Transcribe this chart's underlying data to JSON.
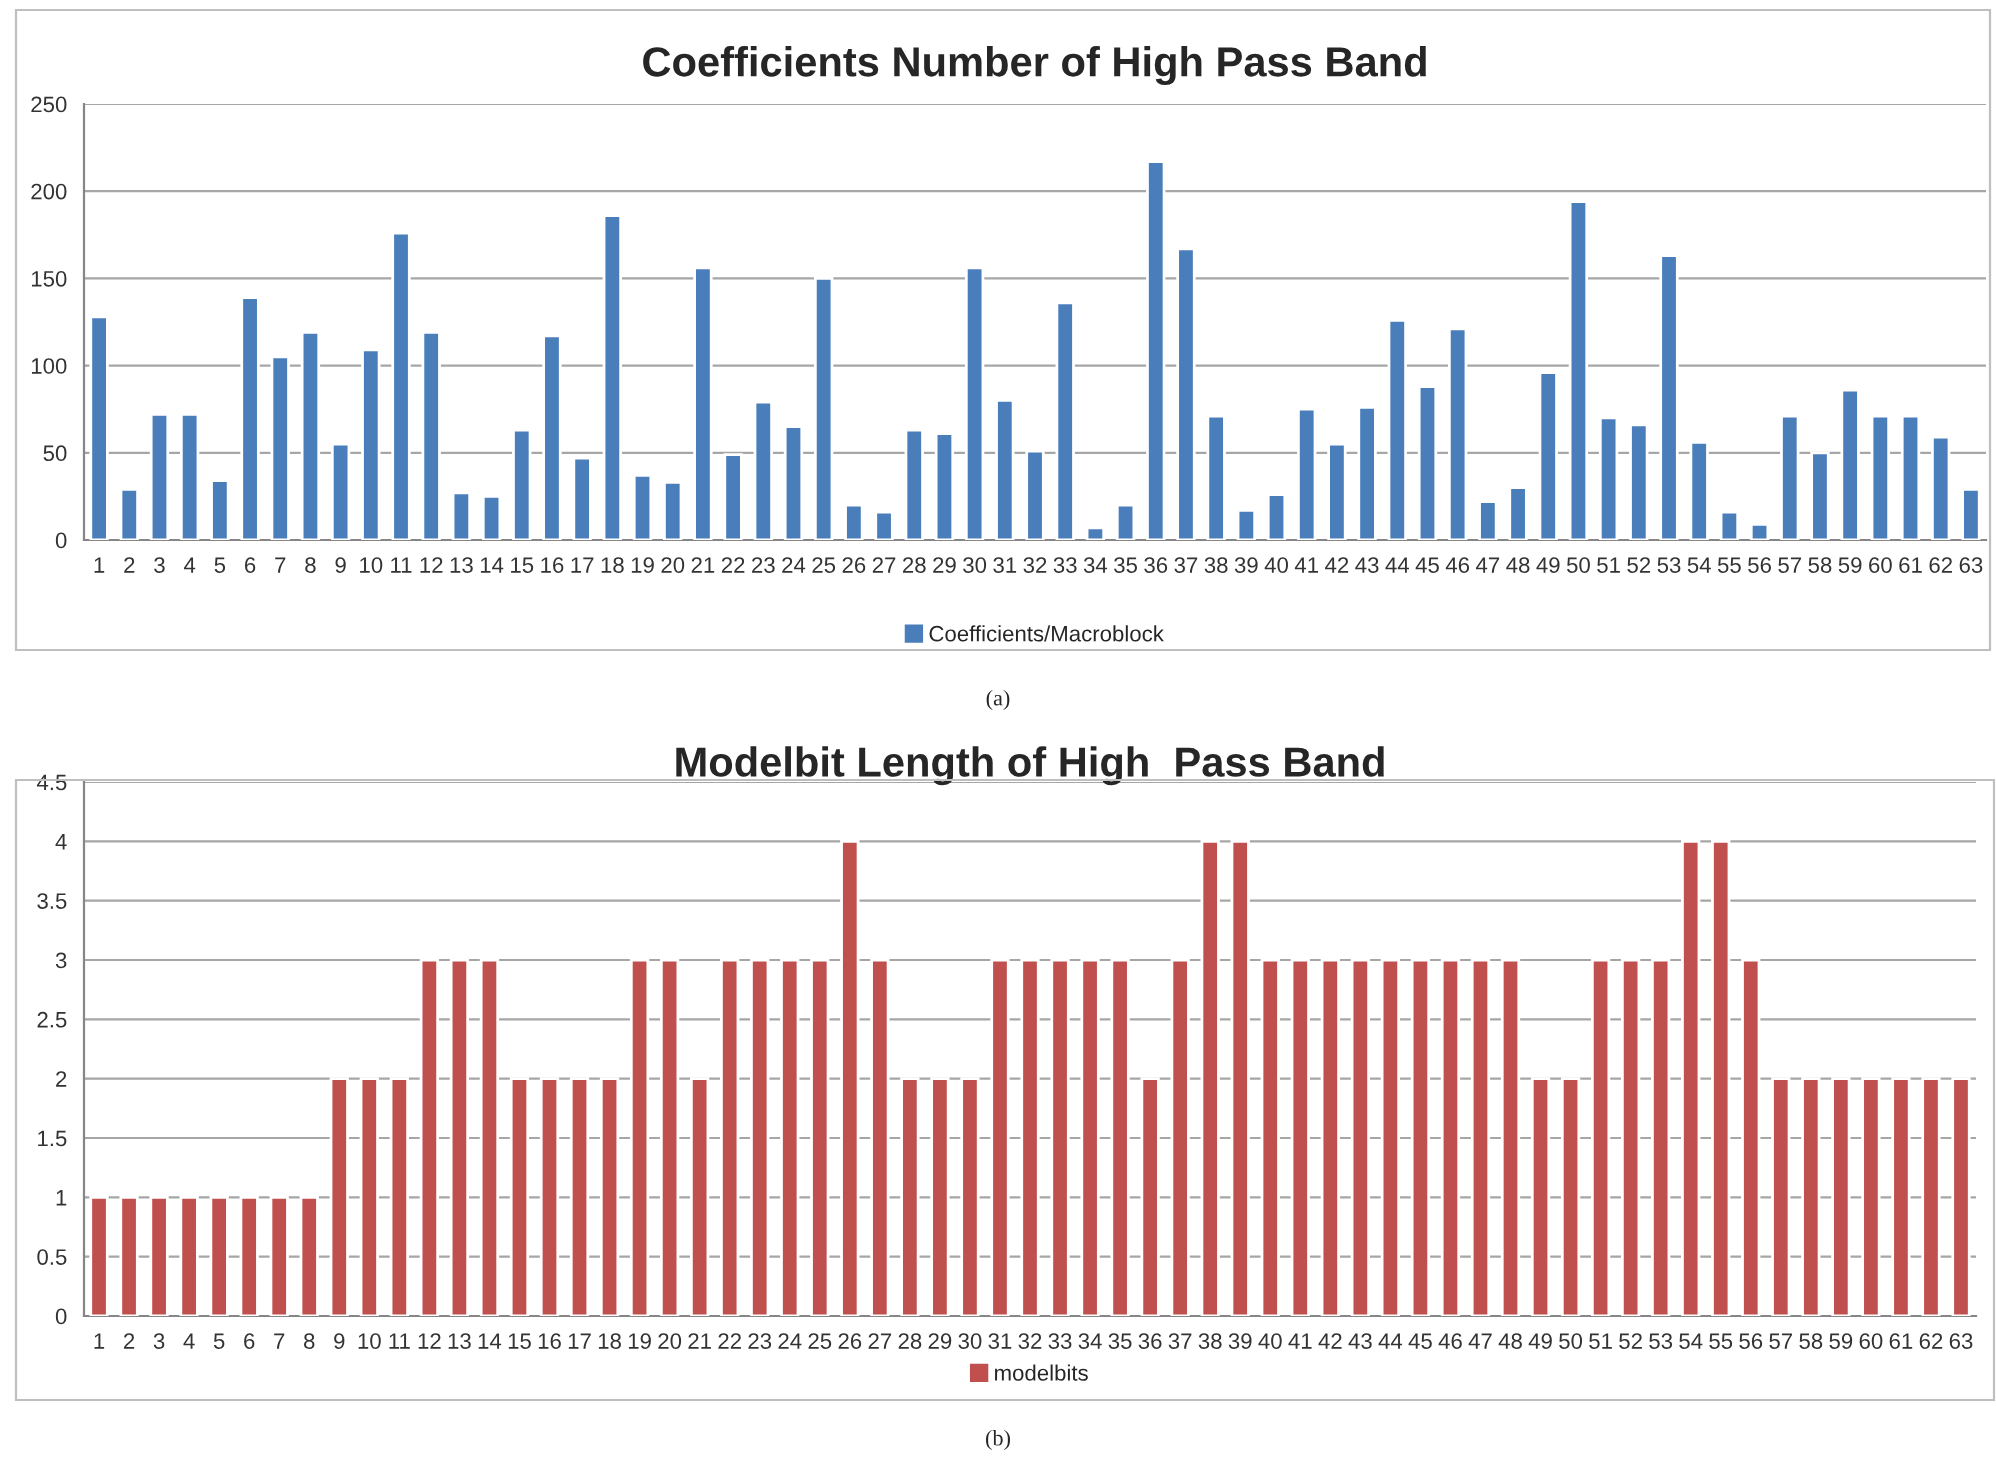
{
  "chart_data": [
    {
      "type": "bar",
      "title": "Coefficients Number of High Pass Band",
      "categories": [
        "1",
        "2",
        "3",
        "4",
        "5",
        "6",
        "7",
        "8",
        "9",
        "10",
        "11",
        "12",
        "13",
        "14",
        "15",
        "16",
        "17",
        "18",
        "19",
        "20",
        "21",
        "22",
        "23",
        "24",
        "25",
        "26",
        "27",
        "28",
        "29",
        "30",
        "31",
        "32",
        "33",
        "34",
        "35",
        "36",
        "37",
        "38",
        "39",
        "40",
        "41",
        "42",
        "43",
        "44",
        "45",
        "46",
        "47",
        "48",
        "49",
        "50",
        "51",
        "52",
        "53",
        "54",
        "55",
        "56",
        "57",
        "58",
        "59",
        "60",
        "61",
        "62",
        "63"
      ],
      "series": [
        {
          "name": "Coefficients/Macroblock",
          "color": "#4a7ebb",
          "values": [
            128,
            29,
            72,
            72,
            34,
            139,
            105,
            119,
            55,
            109,
            176,
            119,
            27,
            25,
            63,
            117,
            47,
            186,
            37,
            33,
            156,
            49,
            79,
            65,
            150,
            20,
            16,
            63,
            61,
            156,
            80,
            51,
            136,
            7,
            20,
            217,
            167,
            71,
            17,
            26,
            75,
            55,
            76,
            126,
            88,
            121,
            22,
            30,
            96,
            194,
            70,
            66,
            163,
            56,
            16,
            9,
            71,
            50,
            86,
            71,
            71,
            59,
            29
          ]
        }
      ],
      "ylim": [
        0,
        250
      ],
      "yticks": [
        0,
        50,
        100,
        150,
        200,
        250
      ],
      "grid": "y",
      "legend": "bottom",
      "annotations": [
        "(a)"
      ]
    },
    {
      "type": "bar",
      "title": "Modelbit Length of High  Pass Band",
      "categories": [
        "1",
        "2",
        "3",
        "4",
        "5",
        "6",
        "7",
        "8",
        "9",
        "10",
        "11",
        "12",
        "13",
        "14",
        "15",
        "16",
        "17",
        "18",
        "19",
        "20",
        "21",
        "22",
        "23",
        "24",
        "25",
        "26",
        "27",
        "28",
        "29",
        "30",
        "31",
        "32",
        "33",
        "34",
        "35",
        "36",
        "37",
        "38",
        "39",
        "40",
        "41",
        "42",
        "43",
        "44",
        "45",
        "46",
        "47",
        "48",
        "49",
        "50",
        "51",
        "52",
        "53",
        "54",
        "55",
        "56",
        "57",
        "58",
        "59",
        "60",
        "61",
        "62",
        "63"
      ],
      "series": [
        {
          "name": "modelbits",
          "color": "#c0504d",
          "values": [
            1,
            1,
            1,
            1,
            1,
            1,
            1,
            1,
            2,
            2,
            2,
            3,
            3,
            3,
            2,
            2,
            2,
            2,
            3,
            3,
            2,
            3,
            3,
            3,
            3,
            4,
            3,
            2,
            2,
            2,
            3,
            3,
            3,
            3,
            3,
            2,
            3,
            4,
            4,
            3,
            3,
            3,
            3,
            3,
            3,
            3,
            3,
            3,
            2,
            2,
            3,
            3,
            3,
            4,
            4,
            3,
            2,
            2,
            2,
            2,
            2,
            2,
            2
          ]
        }
      ],
      "ylim": [
        0,
        4.5
      ],
      "yticks": [
        0,
        0.5,
        1,
        1.5,
        2,
        2.5,
        3,
        3.5,
        4,
        4.5
      ],
      "grid": "y",
      "legend": "bottom",
      "annotations": [
        "(b)"
      ]
    }
  ]
}
